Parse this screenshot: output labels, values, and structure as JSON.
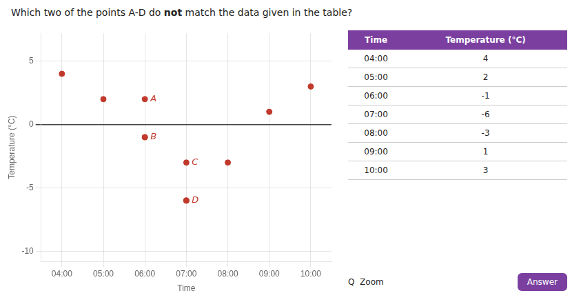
{
  "chart_data": {
    "type": "scatter",
    "title": [
      "Which two of the points A-D do ",
      "not",
      " match the data given in the table?"
    ],
    "x_label": "Time",
    "y_label": "Temperature (°C)",
    "categories": [
      "04:00",
      "05:00",
      "06:00",
      "07:00",
      "08:00",
      "09:00",
      "10:00"
    ],
    "ylim": [
      -10.8,
      7.2
    ],
    "yticks": [
      -10,
      -5,
      0,
      5
    ],
    "grid": true,
    "series": [
      {
        "color": "#c0392b",
        "values": [
          4,
          2,
          -1,
          -6,
          -3,
          1,
          3
        ]
      },
      {
        "color": "#c0392b",
        "x": [
          "06:00",
          "06:00",
          "07:00",
          "07:00"
        ],
        "values": [
          2,
          -1,
          -3,
          -6
        ],
        "point_labels": [
          "A",
          "B",
          "C",
          "D"
        ]
      }
    ],
    "table": {
      "columns": [
        "Time",
        "Temperature (°C)"
      ],
      "rows": [
        [
          "04:00",
          "4"
        ],
        [
          "05:00",
          "2"
        ],
        [
          "06:00",
          "-1"
        ],
        [
          "07:00",
          "-6"
        ],
        [
          "08:00",
          "-3"
        ],
        [
          "09:00",
          "1"
        ],
        [
          "10:00",
          "3"
        ]
      ],
      "header_color": "#7b3fa0"
    },
    "zoom_text": "Q  Zoom",
    "answer_text": "Answer",
    "answer_color": "#7b3fa0"
  }
}
